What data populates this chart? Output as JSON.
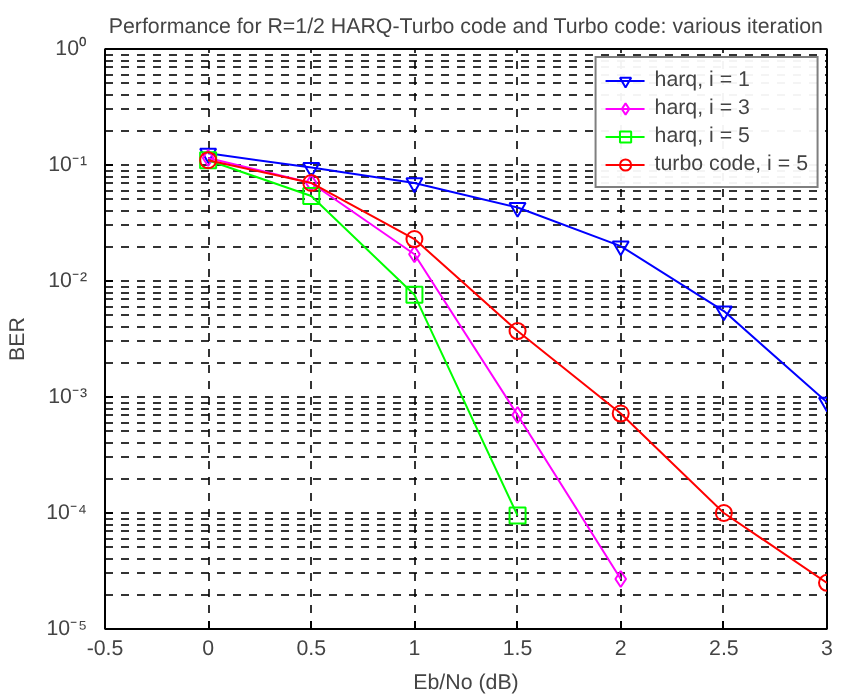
{
  "chart_data": {
    "type": "line",
    "title": "Performance for R=1/2 HARQ-Turbo code and Turbo code: various iteration",
    "xlabel": "Eb/No (dB)",
    "ylabel": "BER",
    "x": [
      0,
      0.5,
      1,
      1.5,
      2,
      2.5,
      3
    ],
    "series": [
      {
        "name": "harq, i = 1",
        "color": "#0000ff",
        "marker": "triangle",
        "values": [
          0.126,
          0.095,
          0.07,
          0.043,
          0.02,
          0.0055,
          0.0009
        ]
      },
      {
        "name": "harq, i = 3",
        "color": "#ff00ff",
        "marker": "diamond",
        "values": [
          0.115,
          0.07,
          0.017,
          0.0007,
          2.7e-05,
          null,
          null
        ]
      },
      {
        "name": "harq, i = 5",
        "color": "#00ff00",
        "marker": "square",
        "values": [
          0.11,
          0.054,
          0.0076,
          9.5e-05,
          null,
          null,
          null
        ]
      },
      {
        "name": "turbo code, i = 5",
        "color": "#ff0000",
        "marker": "circle",
        "values": [
          0.11,
          0.07,
          0.023,
          0.0037,
          0.00072,
          0.0001,
          2.5e-05
        ]
      }
    ],
    "xlim": [
      -0.5,
      3
    ],
    "xticks": [
      -0.5,
      0,
      0.5,
      1,
      1.5,
      2,
      2.5,
      3
    ],
    "ylim": [
      1e-05,
      1
    ],
    "log": "y",
    "yticks": [
      {
        "value": 1e-05,
        "label": "10⁻⁵"
      },
      {
        "value": 0.0001,
        "label": "10⁻⁴"
      },
      {
        "value": 0.001,
        "label": "10⁻³"
      },
      {
        "value": 0.01,
        "label": "10⁻²"
      },
      {
        "value": 0.1,
        "label": "10⁻¹"
      },
      {
        "value": 1,
        "label": "10⁰"
      }
    ],
    "grid": true,
    "legend": "top right",
    "line_style": "solid"
  }
}
